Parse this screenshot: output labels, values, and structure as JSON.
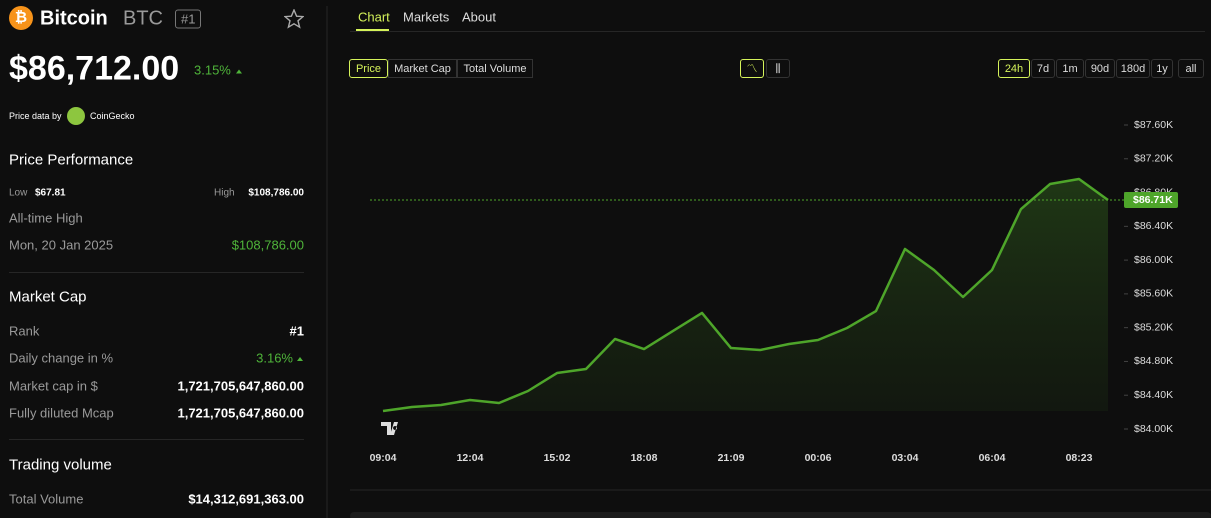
{
  "header": {
    "name": "Bitcoin",
    "symbol": "BTC",
    "rank_badge": "#1",
    "price": "$86,712.00",
    "change": "3.15%",
    "source_prefix": "Price data by",
    "source": "CoinGecko"
  },
  "performance": {
    "title": "Price Performance",
    "low_label": "Low",
    "low": "$67.81",
    "high_label": "High",
    "high": "$108,786.00",
    "ath_label": "All-time High",
    "ath_date": "Mon, 20 Jan 2025",
    "ath_value": "$108,786.00"
  },
  "market_cap": {
    "title": "Market Cap",
    "rows": [
      [
        "Rank",
        "#1"
      ],
      [
        "Daily change in %",
        "3.16%"
      ],
      [
        "Market cap in $",
        "1,721,705,647,860.00"
      ],
      [
        "Fully diluted Mcap",
        "1,721,705,647,860.00"
      ]
    ]
  },
  "trading": {
    "title": "Trading volume",
    "rows": [
      [
        "Total Volume",
        "$14,312,691,363.00"
      ]
    ]
  },
  "tabs": [
    "Chart",
    "Markets",
    "About"
  ],
  "metrics": [
    "Price",
    "Market Cap",
    "Total Volume"
  ],
  "ranges": [
    "24h",
    "7d",
    "1m",
    "90d",
    "180d",
    "1y",
    "all"
  ],
  "chart_data": {
    "type": "area",
    "color": "#4ea52a",
    "categories": [
      "09:04",
      null,
      null,
      "12:04",
      null,
      null,
      "15:02",
      null,
      null,
      "18:08",
      null,
      null,
      "21:09",
      null,
      null,
      "00:06",
      null,
      null,
      "03:04",
      null,
      null,
      "06:04",
      null,
      null,
      "08:23",
      null
    ],
    "values": [
      84213,
      84261,
      84284,
      84343,
      84308,
      84450,
      84663,
      84711,
      85066,
      84947,
      85161,
      85374,
      84959,
      84935,
      85007,
      85054,
      85196,
      85397,
      86132,
      85883,
      85563,
      85883,
      86605,
      86901,
      86961,
      86712
    ],
    "ylim": [
      84000,
      87600
    ],
    "yticks": [
      {
        "value": 87600,
        "label": "$87.60K"
      },
      {
        "value": 87200,
        "label": "$87.20K"
      },
      {
        "value": 86800,
        "label": "$86.80K"
      },
      {
        "value": 86400,
        "label": "$86.40K"
      },
      {
        "value": 86000,
        "label": "$86.00K"
      },
      {
        "value": 85600,
        "label": "$85.60K"
      },
      {
        "value": 85200,
        "label": "$85.20K"
      },
      {
        "value": 84800,
        "label": "$84.80K"
      },
      {
        "value": 84400,
        "label": "$84.40K"
      },
      {
        "value": 84000,
        "label": "$84.00K"
      }
    ],
    "price_tag": {
      "value": 86712,
      "label": "$86.71K"
    }
  }
}
